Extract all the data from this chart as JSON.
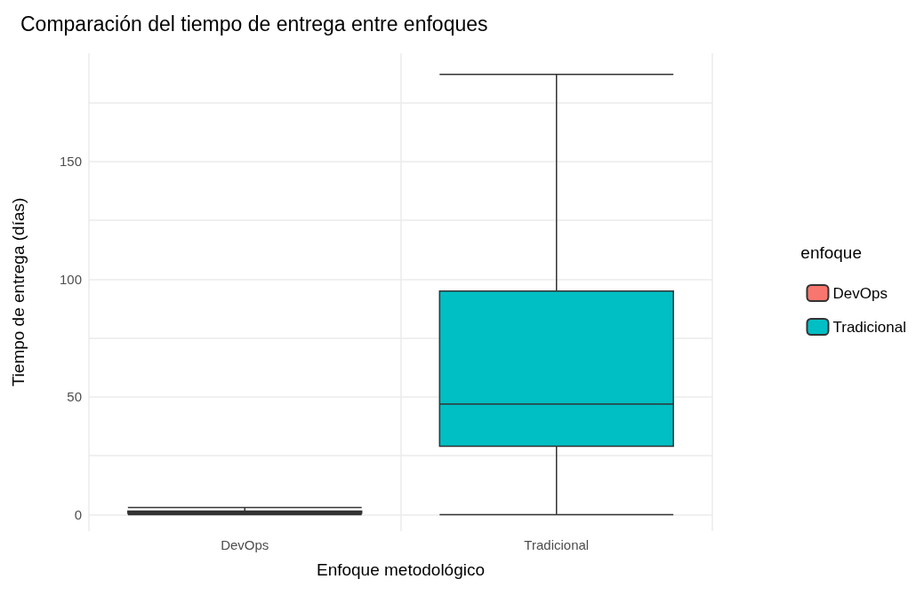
{
  "chart_data": {
    "type": "box",
    "title": "Comparación del tiempo de entrega entre enfoques",
    "xlabel": "Enfoque metodológico",
    "ylabel": "Tiempo de entrega (días)",
    "legend_title": "enfoque",
    "legend": "right",
    "grid": true,
    "categories": [
      "DevOps",
      "Tradicional"
    ],
    "series": [
      {
        "name": "DevOps",
        "color": "#f8766d",
        "boxes": [
          {
            "low": 0,
            "q1": 0.5,
            "median": 1,
            "q3": 1.5,
            "high": 3
          },
          null
        ]
      },
      {
        "name": "Tradicional",
        "color": "#00bfc4",
        "boxes": [
          null,
          {
            "low": 0,
            "q1": 29,
            "median": 47,
            "q3": 95,
            "high": 187
          }
        ]
      }
    ],
    "ylim": [
      -7,
      196
    ],
    "yticks": [
      0,
      {
        "value": 25,
        "label": null
      },
      50,
      {
        "value": 75,
        "label": null
      },
      100,
      {
        "value": 125,
        "label": null
      },
      150,
      {
        "value": 175,
        "label": null
      }
    ]
  }
}
